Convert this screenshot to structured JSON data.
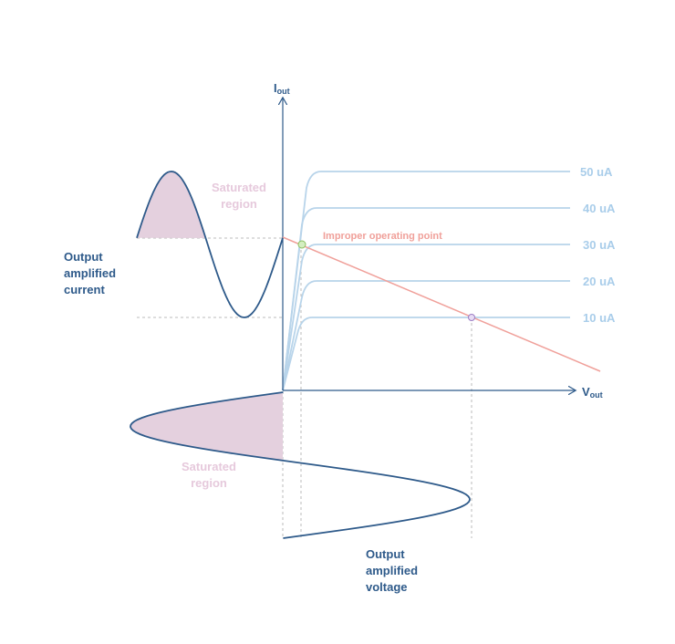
{
  "axes": {
    "y_label": {
      "main": "I",
      "sub": "out"
    },
    "x_label": {
      "main": "V",
      "sub": "out"
    }
  },
  "curves": [
    "50 uA",
    "40 uA",
    "30 uA",
    "20 uA",
    "10 uA"
  ],
  "load_line_label": "Improper operating point",
  "saturated_top": [
    "Saturated",
    "region"
  ],
  "saturated_bottom": [
    "Saturated",
    "region"
  ],
  "current_label": [
    "Output",
    "amplified",
    "current"
  ],
  "voltage_label": [
    "Output",
    "amplified",
    "voltage"
  ]
}
